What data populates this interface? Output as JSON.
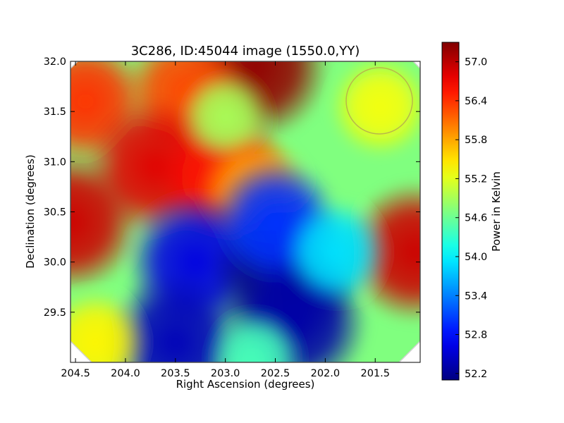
{
  "chart_data": {
    "type": "heatmap",
    "title": "3C286, ID:45044 image (1550.0,YY)",
    "xlabel": "Right Ascension (degrees)",
    "ylabel": "Declination (degrees)",
    "x_range": [
      204.55,
      201.05
    ],
    "y_range": [
      29.0,
      32.0
    ],
    "x_ticks": [
      "204.5",
      "204.0",
      "203.5",
      "203.0",
      "202.5",
      "202.0",
      "201.5"
    ],
    "x_tick_values": [
      204.5,
      204.0,
      203.5,
      203.0,
      202.5,
      202.0,
      201.5
    ],
    "y_ticks": [
      "29.5",
      "30.0",
      "30.5",
      "31.0",
      "31.5",
      "32.0"
    ],
    "y_tick_values": [
      29.5,
      30.0,
      30.5,
      31.0,
      31.5,
      32.0
    ],
    "colorbar": {
      "label": "Power in Kelvin",
      "range": [
        52.1,
        57.3
      ],
      "ticks": [
        "52.2",
        "52.8",
        "53.4",
        "54.0",
        "54.6",
        "55.2",
        "55.8",
        "56.4",
        "57.0"
      ],
      "tick_values": [
        52.2,
        52.8,
        53.4,
        54.0,
        54.6,
        55.2,
        55.8,
        56.4,
        57.0
      ],
      "colormap": "jet"
    },
    "field_mean_kelvin": 54.7,
    "features": [
      {
        "ra": 202.7,
        "dec": 31.95,
        "value": 57.2
      },
      {
        "ra": 204.4,
        "dec": 31.6,
        "value": 56.4
      },
      {
        "ra": 203.4,
        "dec": 31.7,
        "value": 56.3
      },
      {
        "ra": 203.7,
        "dec": 30.95,
        "value": 56.8
      },
      {
        "ra": 203.0,
        "dec": 30.85,
        "value": 56.6
      },
      {
        "ra": 204.55,
        "dec": 30.4,
        "value": 56.9
      },
      {
        "ra": 201.1,
        "dec": 30.1,
        "value": 56.9
      },
      {
        "ra": 203.0,
        "dec": 31.45,
        "value": 54.9
      },
      {
        "ra": 202.7,
        "dec": 30.7,
        "value": 55.8
      },
      {
        "ra": 201.45,
        "dec": 31.55,
        "value": 55.3
      },
      {
        "ra": 203.3,
        "dec": 30.0,
        "value": 52.6
      },
      {
        "ra": 202.4,
        "dec": 29.9,
        "value": 52.1
      },
      {
        "ra": 202.3,
        "dec": 29.4,
        "value": 52.3
      },
      {
        "ra": 203.5,
        "dec": 29.2,
        "value": 52.4
      },
      {
        "ra": 202.5,
        "dec": 30.4,
        "value": 53.0
      },
      {
        "ra": 202.7,
        "dec": 29.05,
        "value": 54.4
      },
      {
        "ra": 201.9,
        "dec": 30.1,
        "value": 53.9
      },
      {
        "ra": 204.3,
        "dec": 29.2,
        "value": 55.4
      }
    ],
    "grid": false
  }
}
